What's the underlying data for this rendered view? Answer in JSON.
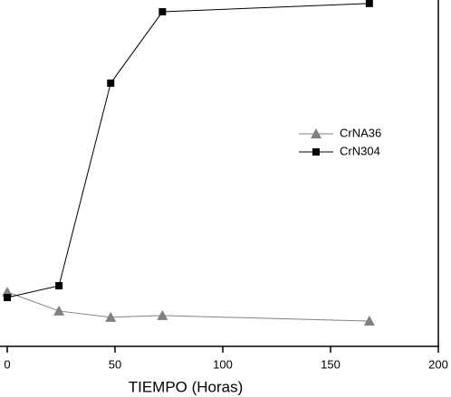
{
  "chart_data": {
    "type": "line",
    "x_label": "TIEMPO (Horas)",
    "x": [
      0,
      24,
      48,
      72,
      168
    ],
    "series": [
      {
        "name": "CrNA36",
        "color": "#808080",
        "marker": "triangle",
        "values": [
          15.7,
          10.2,
          8.4,
          8.9,
          7.3
        ]
      },
      {
        "name": "CrN304",
        "color": "#000000",
        "marker": "square",
        "values": [
          14.1,
          17.5,
          76.0,
          96.6,
          99.0
        ]
      }
    ],
    "xlim": [
      0,
      200
    ],
    "xticks": [
      0,
      50,
      100,
      150,
      200
    ],
    "ylim": [
      0,
      100
    ],
    "legend": "right"
  }
}
